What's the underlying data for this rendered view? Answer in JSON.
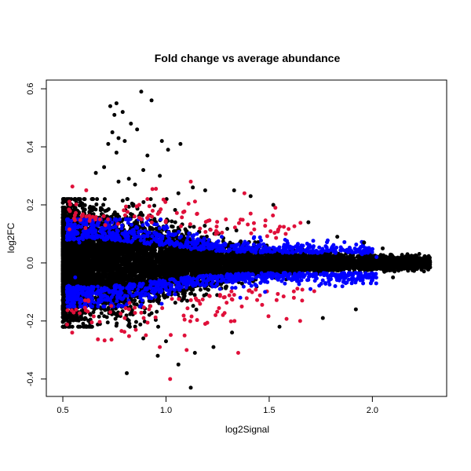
{
  "chart_data": {
    "type": "scatter",
    "title": "Fold change vs average abundance",
    "xlabel": "log2Signal",
    "ylabel": "log2FC",
    "xlim": [
      0.42,
      2.36
    ],
    "ylim": [
      -0.46,
      0.63
    ],
    "x_ticks": [
      "0.5",
      "1.0",
      "1.5",
      "2.0"
    ],
    "y_ticks": [
      "-0.4",
      "-0.2",
      "0.0",
      "0.2",
      "0.4",
      "0.6"
    ],
    "grid": false,
    "legend": "none",
    "series_colors": {
      "all": "#000000",
      "blue": "#0000ff",
      "red": "#e0103a"
    },
    "series": [
      {
        "color": "all",
        "points": [
          [
            0.88,
            0.59
          ],
          [
            0.93,
            0.56
          ],
          [
            0.73,
            0.54
          ],
          [
            0.76,
            0.55
          ],
          [
            0.79,
            0.52
          ],
          [
            0.83,
            0.48
          ],
          [
            0.86,
            0.46
          ],
          [
            0.75,
            0.51
          ],
          [
            0.74,
            0.45
          ],
          [
            0.77,
            0.43
          ],
          [
            0.8,
            0.42
          ],
          [
            0.72,
            0.41
          ],
          [
            0.76,
            0.38
          ],
          [
            0.98,
            0.42
          ],
          [
            1.07,
            0.41
          ],
          [
            1.01,
            0.39
          ],
          [
            0.91,
            0.37
          ],
          [
            0.89,
            0.32
          ],
          [
            0.97,
            0.3
          ],
          [
            0.7,
            0.33
          ],
          [
            0.82,
            0.29
          ],
          [
            0.66,
            0.31
          ],
          [
            0.77,
            0.28
          ],
          [
            0.85,
            0.27
          ],
          [
            1.13,
            0.26
          ],
          [
            1.06,
            0.24
          ],
          [
            1.19,
            0.25
          ],
          [
            1.33,
            0.25
          ],
          [
            1.41,
            0.23
          ],
          [
            1.52,
            0.2
          ],
          [
            0.81,
            -0.38
          ],
          [
            0.96,
            -0.32
          ],
          [
            1.12,
            -0.43
          ],
          [
            1.06,
            -0.35
          ],
          [
            1.14,
            -0.31
          ],
          [
            0.89,
            -0.26
          ],
          [
            1.0,
            -0.27
          ],
          [
            1.23,
            -0.29
          ],
          [
            1.32,
            -0.24
          ],
          [
            1.55,
            -0.22
          ],
          [
            1.76,
            -0.19
          ],
          [
            1.92,
            -0.16
          ],
          [
            2.1,
            -0.05
          ],
          [
            2.25,
            0.01
          ],
          [
            2.21,
            0.02
          ],
          [
            2.17,
            0.03
          ],
          [
            2.05,
            0.05
          ],
          [
            1.96,
            0.07
          ],
          [
            1.83,
            0.09
          ],
          [
            1.69,
            0.14
          ]
        ]
      },
      {
        "color": "red",
        "points": [
          [
            0.91,
            0.22
          ],
          [
            1.12,
            0.28
          ],
          [
            0.87,
            0.2
          ],
          [
            1.38,
            0.24
          ],
          [
            1.53,
            0.19
          ],
          [
            0.97,
            -0.29
          ],
          [
            1.02,
            -0.4
          ],
          [
            1.1,
            -0.3
          ],
          [
            1.09,
            -0.25
          ],
          [
            1.35,
            -0.31
          ],
          [
            1.65,
            -0.2
          ],
          [
            0.73,
            -0.17
          ],
          [
            0.8,
            -0.19
          ],
          [
            0.68,
            0.15
          ],
          [
            1.29,
            0.15
          ],
          [
            1.41,
            0.17
          ],
          [
            1.19,
            -0.21
          ],
          [
            1.24,
            -0.18
          ],
          [
            0.61,
            0.12
          ],
          [
            1.58,
            0.1
          ]
        ]
      },
      {
        "color": "blue",
        "points": [
          [
            1.7,
            -0.09
          ],
          [
            1.9,
            -0.07
          ],
          [
            2.0,
            -0.06
          ],
          [
            1.82,
            -0.08
          ],
          [
            1.48,
            -0.1
          ],
          [
            1.36,
            -0.12
          ],
          [
            1.6,
            0.05
          ],
          [
            1.75,
            0.04
          ],
          [
            1.95,
            0.03
          ],
          [
            2.02,
            0.02
          ],
          [
            0.56,
            -0.05
          ],
          [
            0.58,
            0.07
          ],
          [
            0.63,
            0.09
          ],
          [
            1.15,
            0.1
          ],
          [
            1.27,
            0.09
          ]
        ]
      }
    ]
  }
}
